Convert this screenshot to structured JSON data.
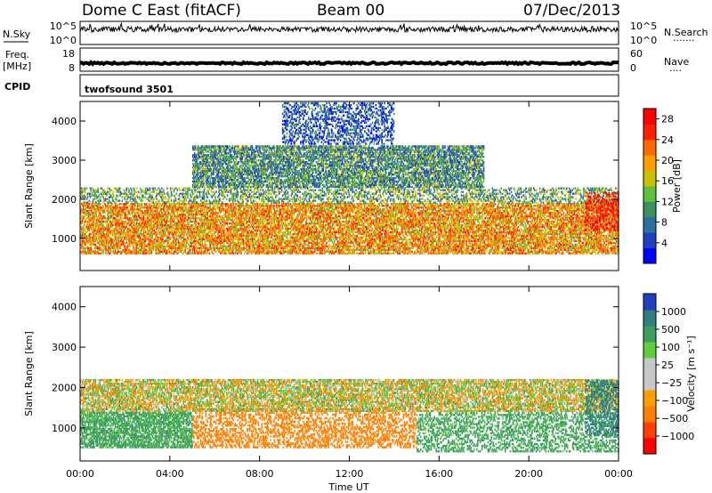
{
  "header": {
    "site": "Dome C East (fitACF)",
    "beam": "Beam 00",
    "date": "07/Dec/2013"
  },
  "strips": {
    "nsky_label": "N.Sky",
    "nsearch_label": "N.Search",
    "nsearch_dots": "·······",
    "freq_label": "Freq.",
    "freq_unit": "[MHz]",
    "nave_label": "Nave",
    "nave_dots": "····",
    "cpid_label": "CPID",
    "cpid_value": "twofsound 3501",
    "noise_ticks": [
      "10^5",
      "10^0"
    ],
    "noise_right_ticks": [
      "10^5",
      "10^0"
    ],
    "freq_ticks": [
      "18",
      "8"
    ],
    "nave_ticks": [
      "60",
      "0"
    ]
  },
  "colors": {
    "power": [
      "#0000ff",
      "#1f3fbf",
      "#2e6f9e",
      "#3f8f5f",
      "#5fbf3f",
      "#c8c000",
      "#ffa000",
      "#ff6a00",
      "#ff2000",
      "#ff0000"
    ],
    "velocity": [
      "#ff0000",
      "#ff4000",
      "#ff8000",
      "#ffa000",
      "#c8c8c8",
      "#c8c8c8",
      "#5fcf3f",
      "#3f9f5f",
      "#2f7f7f",
      "#1f3fbf"
    ]
  },
  "chart_data": [
    {
      "type": "heatmap",
      "panel": "power",
      "title": "",
      "xlabel": "",
      "ylabel": "Slant Range [km]",
      "xlim": [
        "00:00",
        "00:00"
      ],
      "ylim": [
        180,
        4500
      ],
      "yticks": [
        1000,
        2000,
        3000,
        4000
      ],
      "colorbar": {
        "label": "Power [dB]",
        "ticks": [
          "4",
          "8",
          "12",
          "16",
          "20",
          "24",
          "28"
        ],
        "range": [
          0,
          30
        ]
      },
      "bands": [
        {
          "t_start": 0.0,
          "t_end": 24.0,
          "r_low": 600,
          "r_high": 1900,
          "value": 20
        },
        {
          "t_start": 0.0,
          "t_end": 24.0,
          "r_low": 1900,
          "r_high": 2300,
          "value": 12
        },
        {
          "t_start": 5.0,
          "t_end": 18.0,
          "r_low": 2300,
          "r_high": 3400,
          "value": 10
        },
        {
          "t_start": 9.0,
          "t_end": 14.0,
          "r_low": 3400,
          "r_high": 4500,
          "value": 6
        },
        {
          "t_start": 22.5,
          "t_end": 24.0,
          "r_low": 1200,
          "r_high": 2200,
          "value": 28
        }
      ]
    },
    {
      "type": "heatmap",
      "panel": "velocity",
      "title": "",
      "xlabel": "Time UT",
      "ylabel": "Slant Range [km]",
      "xlim": [
        "00:00",
        "00:00"
      ],
      "ylim": [
        180,
        4500
      ],
      "yticks": [
        1000,
        2000,
        3000,
        4000
      ],
      "xticks": [
        "00:00",
        "04:00",
        "08:00",
        "12:00",
        "16:00",
        "20:00",
        "00:00"
      ],
      "colorbar": {
        "label": "Velocity [m s⁻¹]",
        "ticks": [
          "-1000",
          "-500",
          "-100",
          "-25",
          "25",
          "100",
          "500",
          "1000"
        ]
      },
      "bands": [
        {
          "t_start": 0.0,
          "t_end": 5.0,
          "r_low": 500,
          "r_high": 1400,
          "value": 200
        },
        {
          "t_start": 5.0,
          "t_end": 15.0,
          "r_low": 500,
          "r_high": 1500,
          "value": -300
        },
        {
          "t_start": 0.0,
          "t_end": 24.0,
          "r_low": 1400,
          "r_high": 2200,
          "value": 0
        },
        {
          "t_start": 15.0,
          "t_end": 24.0,
          "r_low": 400,
          "r_high": 1400,
          "value": 200
        },
        {
          "t_start": 22.5,
          "t_end": 24.0,
          "r_low": 800,
          "r_high": 2200,
          "value": 800
        }
      ]
    }
  ]
}
